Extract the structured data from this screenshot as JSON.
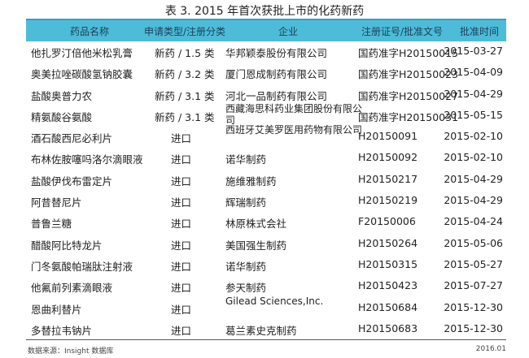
{
  "title": "表 3. 2015 年首次获批上市的化药新药",
  "headers": [
    "药品名称",
    "申请类型/注册分类",
    "企业",
    "注册证号/批准文号",
    "批准时间"
  ],
  "rows": [
    [
      "他扎罗汀倍他米松乳膏",
      "新药 / 1.5 类",
      "华邦颖泰股份有限公司",
      "国药准字H20150015",
      "2015-03-27"
    ],
    [
      "奥美拉唑碳酸氢钠胶囊",
      "新药 / 3.2 类",
      "厦门恩成制药有限公司",
      "国药准字H20150023",
      "2015-04-09"
    ],
    [
      "盐酸奥普力农",
      "新药 / 3.1 类",
      "河北一品制药有限公司",
      "国药准字H20150027",
      "2015-04-29"
    ],
    [
      "精氨酸谷氨酸",
      "新药 / 3.1 类",
      "西藏海思科药业集团股份有限公司",
      "国药准字H20150031",
      "2015-05-15"
    ],
    [
      "酒石酸西尼必利片",
      "进口",
      "西班牙艾美罗医用药物有限公司",
      "H20150091",
      "2015-02-10"
    ],
    [
      "布林佐胺噻吗洛尔滴眼液",
      "进口",
      "诺华制药",
      "H20150092",
      "2015-02-10"
    ],
    [
      "盐酸伊伐布雷定片",
      "进口",
      "施维雅制药",
      "H20150217",
      "2015-04-29"
    ],
    [
      "阿昔替尼片",
      "进口",
      "辉瑞制药",
      "H20150219",
      "2015-04-29"
    ],
    [
      "普鲁兰糖",
      "进口",
      "林原株式会社",
      "F20150006",
      "2015-04-24"
    ],
    [
      "醋酸阿比特龙片",
      "进口",
      "美国强生制药",
      "H20150264",
      "2015-05-06"
    ],
    [
      "门冬氨酸帕瑞肽注射液",
      "进口",
      "诺华制药",
      "H20150315",
      "2015-05-27"
    ],
    [
      "他氟前列素滴眼液",
      "进口",
      "参天制药",
      "H20150423",
      "2015-07-27"
    ],
    [
      "恩曲利替片",
      "进口",
      "Gilead Sciences,Inc.",
      "H20150684",
      "2015-12-30"
    ],
    [
      "多替拉韦钠片",
      "进口",
      "葛兰素史克制药",
      "H20150683",
      "2015-12-30"
    ]
  ],
  "footer": {
    "source": "数据来源：Insight 数据库",
    "date": "2016.01"
  },
  "colors": {
    "header_bg": "#4cbcd9"
  }
}
